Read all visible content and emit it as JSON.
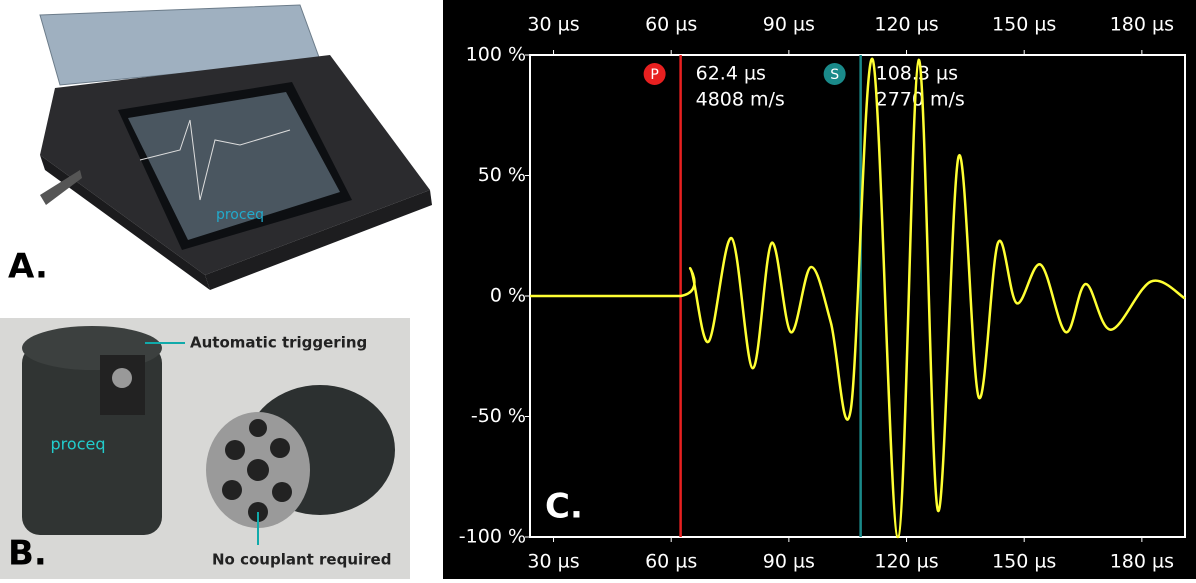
{
  "panels": {
    "a_label": "A.",
    "b_label": "B.",
    "brand": "proceq",
    "callout_top": "Automatic triggering",
    "callout_bottom": "No couplant required"
  },
  "chart_data": {
    "type": "line",
    "panel_label": "C.",
    "x": [
      24,
      62.4,
      65,
      69.5,
      75.4,
      80.8,
      85.6,
      90.5,
      95.6,
      100.7,
      105.8,
      111.4,
      117.8,
      123.1,
      128,
      133.3,
      138.4,
      143.3,
      148.1,
      154.2,
      160.6,
      165.7,
      172.1,
      182.3,
      191
    ],
    "series": [
      {
        "color": "#ffff33",
        "values": [
          0,
          0,
          11,
          -19,
          24,
          -30,
          22,
          -15,
          12,
          -11,
          -47,
          98,
          -100,
          98,
          -89,
          58,
          -42,
          22,
          -3,
          13,
          -15,
          5,
          -14,
          6,
          -1
        ]
      }
    ],
    "xlim": [
      24,
      191
    ],
    "ylim": [
      -100,
      100
    ],
    "xticks": [
      {
        "value": 30,
        "label": "30 µs"
      },
      {
        "value": 60,
        "label": "60 µs"
      },
      {
        "value": 90,
        "label": "90 µs"
      },
      {
        "value": 120,
        "label": "120 µs"
      },
      {
        "value": 150,
        "label": "150 µs"
      },
      {
        "value": 180,
        "label": "180 µs"
      }
    ],
    "yticks": [
      {
        "value": -100,
        "label": "-100 %"
      },
      {
        "value": -50,
        "label": "-50 %"
      },
      {
        "value": 0,
        "label": "0 %"
      },
      {
        "value": 50,
        "label": "50 %"
      },
      {
        "value": 100,
        "label": "100 %"
      }
    ],
    "markers": [
      {
        "x": 62.4,
        "symbol": "P",
        "time": "62.4 µs",
        "velocity": "4808 m/s",
        "color": "#e82020"
      },
      {
        "x": 108.3,
        "symbol": "S",
        "time": "108.3 µs",
        "velocity": "2770 m/s",
        "color": "#1a8a8a"
      }
    ]
  }
}
